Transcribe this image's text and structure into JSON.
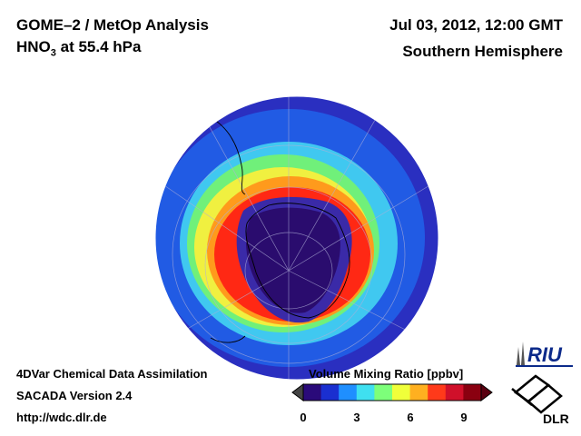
{
  "header": {
    "title_line1": "GOME–2 / MetOp Analysis",
    "title_line2_prefix": "HNO",
    "title_line2_sub": "3",
    "title_line2_suffix": " at 55.4 hPa",
    "datetime": "Jul 03, 2012, 12:00 GMT",
    "hemisphere": "Southern Hemisphere"
  },
  "footer": {
    "line1": "4DVar Chemical Data Assimilation",
    "line2": "SACADA Version 2.4",
    "url": "http://wdc.dlr.de"
  },
  "colorbar": {
    "title": "Volume Mixing Ratio [ppbv]",
    "ticks": [
      "0",
      "3",
      "6",
      "9"
    ],
    "min": 0,
    "max": 10,
    "colors": [
      "#2a0a7a",
      "#1a2fd0",
      "#1f8fff",
      "#3fe0f0",
      "#7dff7a",
      "#f0ff3a",
      "#ffb020",
      "#ff3a1a",
      "#d0102a",
      "#8a0010"
    ]
  },
  "logos": {
    "riu": "RIU",
    "dlr": "DLR"
  }
}
